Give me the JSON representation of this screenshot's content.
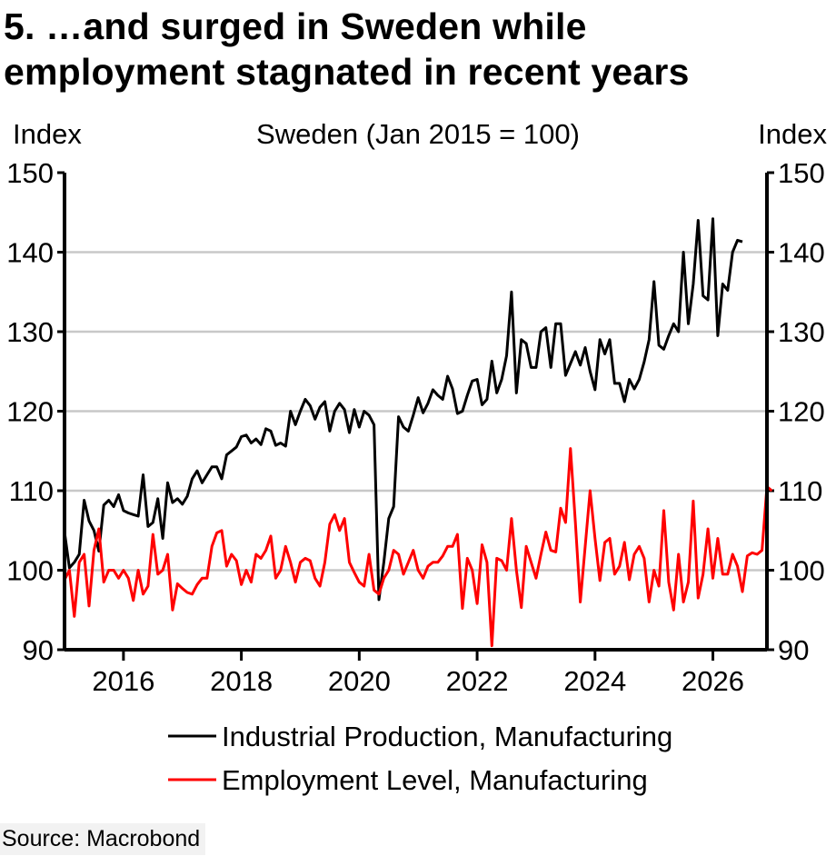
{
  "title_line1": "5. …and surged in Sweden while",
  "title_line2": "employment stagnated in recent years",
  "source": "Source: Macrobond",
  "chart_data": {
    "type": "line",
    "subtitle": "Sweden (Jan 2015 = 100)",
    "ylabel_left": "Index",
    "ylabel_right": "Index",
    "ylim": [
      90,
      150
    ],
    "yticks": [
      90,
      100,
      110,
      120,
      130,
      140,
      150
    ],
    "xlim": [
      "2015-01",
      "2026-12"
    ],
    "xtick_labels": [
      "2016",
      "2018",
      "2020",
      "2022",
      "2024",
      "2026"
    ],
    "grid": "horizontal",
    "legend_position": "bottom",
    "x_start": "2015-01",
    "x_step": "month",
    "series": [
      {
        "name": "Industrial Production, Manufacturing",
        "color": "#000000",
        "values": [
          104.8,
          100.3,
          101.0,
          102.0,
          108.8,
          106.2,
          105.0,
          102.4,
          108.2,
          108.8,
          108.0,
          109.5,
          107.5,
          107.2,
          107.0,
          106.8,
          112.0,
          105.5,
          106.0,
          109.0,
          104.0,
          111.0,
          108.5,
          109.0,
          108.3,
          109.3,
          111.5,
          112.5,
          111.0,
          112.0,
          113.0,
          113.0,
          111.5,
          114.5,
          115.0,
          115.5,
          116.8,
          117.0,
          116.0,
          116.5,
          115.8,
          117.8,
          117.5,
          115.7,
          116.0,
          115.6,
          120.0,
          118.3,
          120.0,
          121.5,
          120.7,
          119.0,
          120.5,
          121.2,
          117.5,
          120.0,
          121.0,
          120.2,
          117.3,
          120.2,
          118.0,
          120.0,
          119.5,
          118.3,
          96.3,
          101.0,
          106.5,
          108.0,
          119.3,
          118.0,
          117.5,
          119.5,
          121.7,
          119.8,
          121.0,
          122.7,
          122.0,
          121.5,
          124.4,
          122.8,
          119.7,
          120.0,
          122.0,
          123.8,
          124.0,
          120.8,
          121.5,
          126.3,
          122.3,
          124.0,
          127.0,
          135.0,
          122.3,
          129.0,
          128.5,
          125.5,
          125.5,
          130.0,
          130.5,
          125.5,
          131.0,
          131.0,
          124.5,
          126.0,
          127.5,
          125.8,
          128.0,
          125.0,
          122.7,
          129.0,
          127.2,
          129.0,
          123.5,
          123.5,
          121.2,
          124.0,
          122.8,
          124.0,
          126.2,
          129.0,
          136.3,
          128.3,
          127.8,
          129.5,
          131.0,
          130.0,
          140.0,
          131.0,
          136.0,
          144.0,
          134.5,
          134.0,
          144.2,
          129.5,
          136.0,
          135.2,
          140.0,
          141.5,
          141.3
        ]
      },
      {
        "name": "Employment Level, Manufacturing",
        "color": "#ff0000",
        "values": [
          98.8,
          100.0,
          94.2,
          101.0,
          102.0,
          95.5,
          102.5,
          105.2,
          98.5,
          100.0,
          100.0,
          99.0,
          100.0,
          99.0,
          96.2,
          100.0,
          97.0,
          98.0,
          104.5,
          99.5,
          100.0,
          102.0,
          95.0,
          98.3,
          97.7,
          97.2,
          97.0,
          98.2,
          99.0,
          99.0,
          103.0,
          104.7,
          105.0,
          100.5,
          102.0,
          101.2,
          98.2,
          100.0,
          98.5,
          102.0,
          101.5,
          102.5,
          104.3,
          99.0,
          100.0,
          103.0,
          101.0,
          98.5,
          101.0,
          101.5,
          101.2,
          99.0,
          98.0,
          101.0,
          105.8,
          107.0,
          105.0,
          106.5,
          101.0,
          99.7,
          98.5,
          98.0,
          102.0,
          97.5,
          97.0,
          99.0,
          100.0,
          102.5,
          102.0,
          99.5,
          101.0,
          102.5,
          100.0,
          99.0,
          100.5,
          101.0,
          101.0,
          101.8,
          103.0,
          103.0,
          104.5,
          95.2,
          101.5,
          100.0,
          95.8,
          103.2,
          101.0,
          90.5,
          101.5,
          101.2,
          100.0,
          106.5,
          100.0,
          95.3,
          103.0,
          101.0,
          99.0,
          102.0,
          104.8,
          102.5,
          102.3,
          107.8,
          106.0,
          115.3,
          106.0,
          96.0,
          103.0,
          110.0,
          104.0,
          98.7,
          103.5,
          104.0,
          99.5,
          100.5,
          103.5,
          98.8,
          102.0,
          103.0,
          101.5,
          96.0,
          100.0,
          98.0,
          107.5,
          98.5,
          95.0,
          102.0,
          96.0,
          98.5,
          108.7,
          96.5,
          99.5,
          105.2,
          99.0,
          104.0,
          99.5,
          99.5,
          102.0,
          100.5,
          97.3,
          101.8,
          102.2,
          102.0,
          102.5,
          110.5,
          110.0
        ]
      }
    ]
  }
}
